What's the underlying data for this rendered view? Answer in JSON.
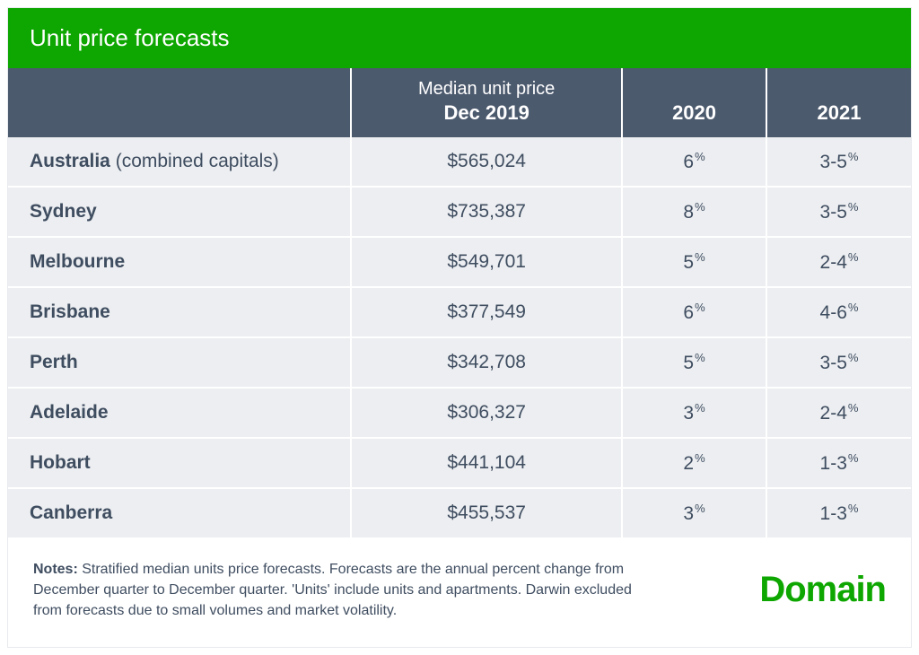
{
  "colors": {
    "brand_green": "#0ea600",
    "header_slate": "#4c5a6e",
    "text_slate": "#3f4d60",
    "row_bg": "#eceef1",
    "white": "#ffffff"
  },
  "title": "Unit price forecasts",
  "columns": {
    "median_line1": "Median unit price",
    "median_line2": "Dec 2019",
    "year1": "2020",
    "year2": "2021"
  },
  "rows": [
    {
      "location": "Australia",
      "location_suffix": " (combined capitals)",
      "price": "$565,024",
      "y2020": "6",
      "y2021": "3-5"
    },
    {
      "location": "Sydney",
      "location_suffix": "",
      "price": "$735,387",
      "y2020": "8",
      "y2021": "3-5"
    },
    {
      "location": "Melbourne",
      "location_suffix": "",
      "price": "$549,701",
      "y2020": "5",
      "y2021": "2-4"
    },
    {
      "location": "Brisbane",
      "location_suffix": "",
      "price": "$377,549",
      "y2020": "6",
      "y2021": "4-6"
    },
    {
      "location": "Perth",
      "location_suffix": "",
      "price": "$342,708",
      "y2020": "5",
      "y2021": "3-5"
    },
    {
      "location": "Adelaide",
      "location_suffix": "",
      "price": "$306,327",
      "y2020": "3",
      "y2021": "2-4"
    },
    {
      "location": "Hobart",
      "location_suffix": "",
      "price": "$441,104",
      "y2020": "2",
      "y2021": "1-3"
    },
    {
      "location": "Canberra",
      "location_suffix": "",
      "price": "$455,537",
      "y2020": "3",
      "y2021": "1-3"
    }
  ],
  "notes_label": "Notes:",
  "notes_text": " Stratified median units price forecasts. Forecasts are the annual percent change from December quarter to December quarter. 'Units' include units and apartments. Darwin excluded from forecasts due to small volumes and market volatility.",
  "logo_text": "Domain",
  "percent_symbol": "%",
  "typography": {
    "title_fontsize": 26,
    "header_fontsize": 20,
    "header_bold_fontsize": 22,
    "body_fontsize": 21,
    "notes_fontsize": 16,
    "logo_fontsize": 40
  }
}
